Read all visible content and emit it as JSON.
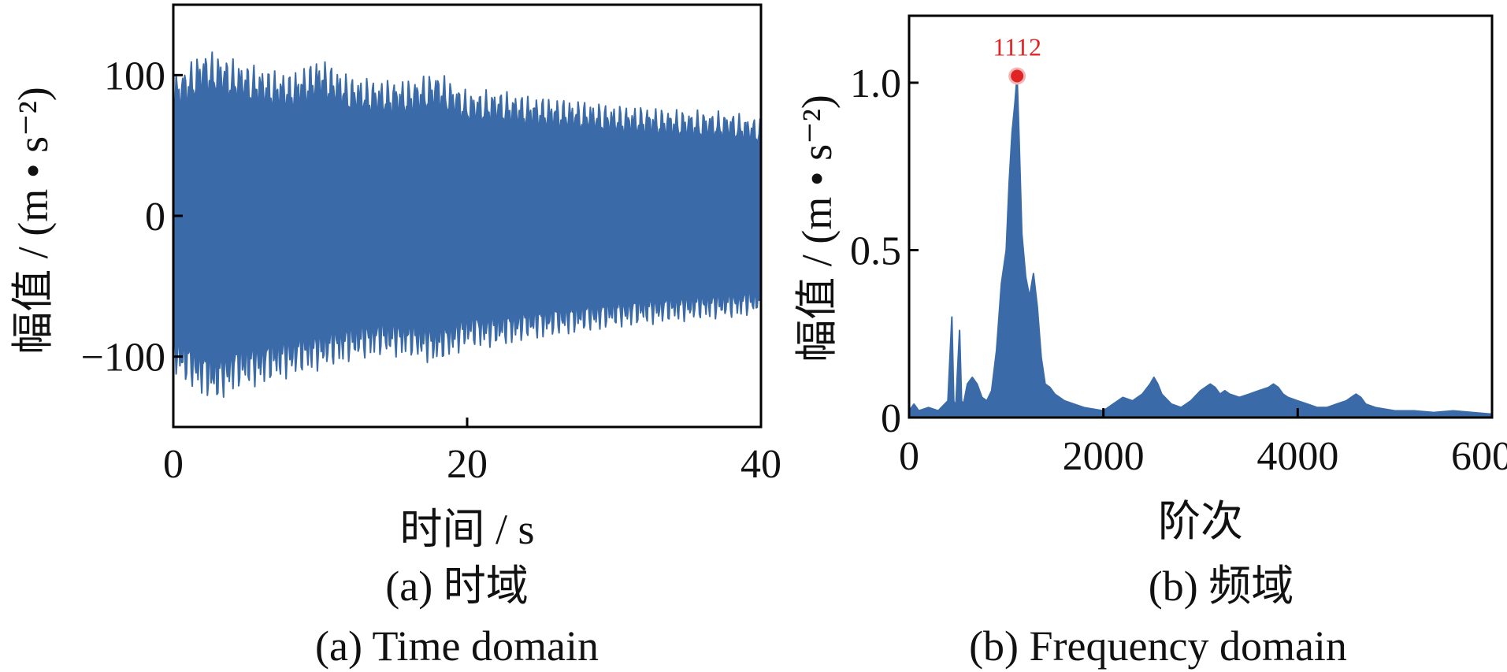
{
  "colors": {
    "series": "#3a6aa8",
    "peak_marker": "#e02424",
    "axis": "#000000"
  },
  "chart_data": [
    {
      "type": "line",
      "panel": "a",
      "xlabel": "时间 / s",
      "ylabel": "幅值 / (m • s⁻²)",
      "xlim": [
        0,
        40
      ],
      "ylim": [
        -150,
        150
      ],
      "xticks": [
        {
          "value": 0,
          "label": "0"
        },
        {
          "value": 20,
          "label": "20"
        },
        {
          "value": 40,
          "label": "40"
        }
      ],
      "yticks": [
        {
          "value": 100,
          "label": "100"
        },
        {
          "value": 0,
          "label": "0"
        },
        {
          "value": -100,
          "label": "−100"
        }
      ],
      "caption_cn": "(a)  时域",
      "caption_en": "(a)  Time domain",
      "series": [
        {
          "envelope": {
            "x": [
              0,
              1,
              2,
              3,
              4,
              6,
              8,
              10,
              12,
              14,
              16,
              18,
              20,
              22,
              24,
              26,
              28,
              30,
              32,
              34,
              36,
              38,
              40
            ],
            "upper": [
              100,
              108,
              118,
              116,
              112,
              106,
              102,
              113,
              100,
              97,
              97,
              103,
              89,
              90,
              86,
              84,
              82,
              79,
              78,
              76,
              75,
              74,
              69
            ],
            "lower": [
              -112,
              -122,
              -128,
              -134,
              -125,
              -121,
              -115,
              -110,
              -104,
              -100,
              -101,
              -106,
              -94,
              -94,
              -89,
              -86,
              -83,
              -80,
              -78,
              -76,
              -74,
              -73,
              -70
            ]
          }
        }
      ]
    },
    {
      "type": "area",
      "panel": "b",
      "xlabel": "阶次",
      "ylabel": "幅值 / (m • s⁻²)",
      "xlim": [
        0,
        6000
      ],
      "ylim": [
        0,
        1.2
      ],
      "xticks": [
        {
          "value": 0,
          "label": "0"
        },
        {
          "value": 2000,
          "label": "2000"
        },
        {
          "value": 4000,
          "label": "4000"
        },
        {
          "value": 6000,
          "label": "6000"
        }
      ],
      "yticks": [
        {
          "value": 1.0,
          "label": "1.0"
        },
        {
          "value": 0.5,
          "label": "0.5"
        },
        {
          "value": 0,
          "label": "0"
        }
      ],
      "caption_cn": "(b)  频域",
      "caption_en": "(b)  Frequency domain",
      "peak": {
        "x": 1112,
        "y": 1.02,
        "label": "1112"
      },
      "series": [
        {
          "x": [
            0,
            50,
            100,
            200,
            300,
            400,
            440,
            460,
            480,
            520,
            540,
            560,
            600,
            650,
            700,
            750,
            800,
            850,
            900,
            950,
            1000,
            1030,
            1060,
            1090,
            1112,
            1130,
            1160,
            1200,
            1240,
            1280,
            1320,
            1360,
            1400,
            1450,
            1500,
            1600,
            1800,
            2000,
            2100,
            2200,
            2300,
            2400,
            2480,
            2520,
            2560,
            2600,
            2700,
            2800,
            2900,
            3000,
            3100,
            3150,
            3200,
            3250,
            3300,
            3400,
            3500,
            3600,
            3700,
            3750,
            3800,
            3850,
            3900,
            4000,
            4100,
            4200,
            4300,
            4400,
            4500,
            4550,
            4600,
            4650,
            4700,
            4800,
            5000,
            5200,
            5400,
            5600,
            5800,
            6000
          ],
          "y": [
            0.02,
            0.04,
            0.02,
            0.03,
            0.02,
            0.05,
            0.3,
            0.05,
            0.03,
            0.26,
            0.05,
            0.04,
            0.1,
            0.12,
            0.1,
            0.06,
            0.05,
            0.08,
            0.2,
            0.4,
            0.5,
            0.7,
            0.85,
            0.94,
            1.02,
            0.85,
            0.55,
            0.42,
            0.36,
            0.43,
            0.33,
            0.18,
            0.1,
            0.09,
            0.07,
            0.05,
            0.03,
            0.02,
            0.04,
            0.06,
            0.05,
            0.07,
            0.1,
            0.12,
            0.1,
            0.07,
            0.04,
            0.03,
            0.05,
            0.08,
            0.1,
            0.09,
            0.07,
            0.08,
            0.07,
            0.06,
            0.07,
            0.08,
            0.09,
            0.1,
            0.09,
            0.07,
            0.06,
            0.05,
            0.04,
            0.03,
            0.03,
            0.04,
            0.05,
            0.06,
            0.07,
            0.06,
            0.04,
            0.03,
            0.02,
            0.02,
            0.015,
            0.02,
            0.015,
            0.01
          ]
        }
      ]
    }
  ]
}
